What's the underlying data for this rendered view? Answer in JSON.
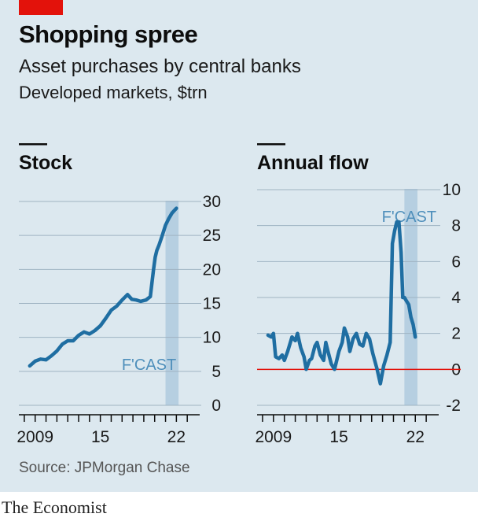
{
  "header": {
    "title": "Shopping spree",
    "subtitle": "Asset purchases by central banks",
    "unit": "Developed markets, $trn"
  },
  "footer": {
    "source": "Source: JPMorgan Chase",
    "brand": "The Economist"
  },
  "colors": {
    "background": "#dce8ef",
    "line": "#1f6ea2",
    "forecast_band": "#b6cfe1",
    "forecast_label": "#4f8fbb",
    "zero_line": "#e3120b",
    "gridline": "#9fb3c2",
    "brand_tag": "#e3120b"
  },
  "chart_data": [
    {
      "type": "line",
      "title": "Stock",
      "ylim": [
        0,
        30
      ],
      "yticks": [
        "30",
        "25",
        "20",
        "15",
        "10",
        "5",
        "0"
      ],
      "xlim": [
        2007.5,
        2024
      ],
      "xticks": [
        {
          "value": 2009,
          "label": "2009"
        },
        {
          "value": 2015,
          "label": "15"
        },
        {
          "value": 2022,
          "label": "22"
        }
      ],
      "forecast": {
        "start": 2021,
        "end": 2022.2,
        "label": "F'CAST"
      },
      "grid": true,
      "series": [
        {
          "x": [
            2008.5,
            2009.0,
            2009.5,
            2010.0,
            2010.5,
            2011.0,
            2011.5,
            2012.0,
            2012.5,
            2013.0,
            2013.5,
            2014.0,
            2014.5,
            2015.0,
            2015.5,
            2016.0,
            2016.5,
            2017.0,
            2017.5,
            2017.9,
            2018.3,
            2018.7,
            2019.2,
            2019.6,
            2019.9,
            2020.05,
            2020.2,
            2020.4,
            2020.7,
            2021.0,
            2021.3,
            2021.6,
            2022.0
          ],
          "values": [
            5.8,
            6.5,
            6.8,
            6.7,
            7.3,
            8.0,
            9.0,
            9.5,
            9.5,
            10.3,
            10.8,
            10.5,
            11.0,
            11.7,
            12.8,
            14.0,
            14.6,
            15.5,
            16.3,
            15.6,
            15.5,
            15.3,
            15.5,
            16.0,
            20.0,
            21.8,
            22.8,
            23.6,
            25.0,
            26.5,
            27.5,
            28.3,
            29.0
          ]
        }
      ]
    },
    {
      "type": "line",
      "title": "Annual flow",
      "ylim": [
        -2,
        10
      ],
      "yticks": [
        "10",
        "8",
        "6",
        "4",
        "2",
        "0",
        "-2"
      ],
      "xlim": [
        2007.5,
        2024
      ],
      "xticks": [
        {
          "value": 2009,
          "label": "2009"
        },
        {
          "value": 2015,
          "label": "15"
        },
        {
          "value": 2022,
          "label": "22"
        }
      ],
      "forecast": {
        "start": 2021,
        "end": 2022.2,
        "label": "F'CAST"
      },
      "grid": true,
      "zero_line": 0,
      "series": [
        {
          "x": [
            2008.5,
            2008.8,
            2009.0,
            2009.2,
            2009.5,
            2009.8,
            2010.0,
            2010.3,
            2010.7,
            2011.0,
            2011.2,
            2011.5,
            2011.8,
            2012.0,
            2012.3,
            2012.5,
            2012.8,
            2013.0,
            2013.3,
            2013.6,
            2013.8,
            2014.0,
            2014.3,
            2014.6,
            2015.0,
            2015.3,
            2015.5,
            2015.8,
            2016.0,
            2016.3,
            2016.6,
            2016.9,
            2017.2,
            2017.5,
            2017.8,
            2018.1,
            2018.5,
            2018.8,
            2019.1,
            2019.4,
            2019.7,
            2019.9,
            2020.1,
            2020.3,
            2020.5,
            2020.7,
            2020.85,
            2021.0,
            2021.2,
            2021.4,
            2021.6,
            2021.8,
            2022.0
          ],
          "values": [
            1.9,
            1.8,
            2.0,
            0.7,
            0.6,
            0.8,
            0.5,
            1.0,
            1.8,
            1.6,
            2.0,
            1.2,
            0.7,
            0.0,
            0.5,
            0.6,
            1.3,
            1.5,
            0.8,
            0.5,
            1.5,
            1.0,
            0.3,
            0.0,
            1.0,
            1.5,
            2.3,
            1.8,
            1.0,
            1.7,
            2.0,
            1.4,
            1.3,
            2.0,
            1.7,
            0.9,
            0.0,
            -0.8,
            0.2,
            0.8,
            1.5,
            7.0,
            7.7,
            8.2,
            8.2,
            6.5,
            4.0,
            4.0,
            3.8,
            3.6,
            2.9,
            2.5,
            1.8
          ]
        }
      ]
    }
  ]
}
